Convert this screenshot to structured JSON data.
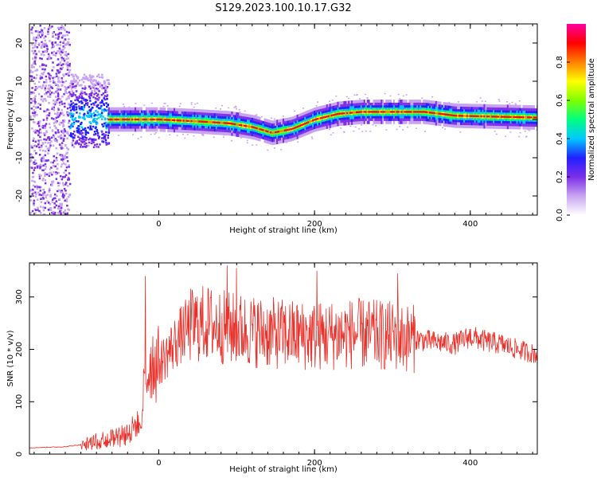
{
  "figure": {
    "title": "S129.2023.100.10.17.G32"
  },
  "chart_data": [
    {
      "type": "heatmap",
      "name": "spectrogram",
      "xlabel": "Height of straight line (km)",
      "ylabel": "Frequency (Hz)",
      "xlim": [
        -166,
        486
      ],
      "ylim": [
        -25,
        25
      ],
      "xticks": [
        0,
        200,
        400
      ],
      "yticks": [
        -20,
        -10,
        0,
        10,
        20
      ],
      "colorbar": {
        "label": "Normalized spectral amplitude",
        "range": [
          0,
          1
        ],
        "ticks": [
          0.0,
          0.2,
          0.4,
          0.6,
          0.8
        ],
        "colormap": [
          "#ffffff",
          "#c8a4f0",
          "#7c2ee8",
          "#2020ff",
          "#00c8ff",
          "#00ff80",
          "#80ff00",
          "#ffff00",
          "#ff8000",
          "#ff0000",
          "#ff00a0"
        ]
      },
      "ridge": {
        "x": [
          -65,
          -40,
          0,
          50,
          90,
          120,
          145,
          170,
          200,
          230,
          260,
          300,
          340,
          380,
          420,
          486
        ],
        "frequency": [
          0,
          0,
          0,
          -0.5,
          -1,
          -2,
          -3.5,
          -2.5,
          0,
          1.5,
          2,
          2,
          2,
          1,
          0.8,
          0.5
        ]
      },
      "noise_region": {
        "x_range": [
          -166,
          -115
        ],
        "frequency_range": [
          -25,
          25
        ]
      },
      "burst_region": {
        "x_range": [
          -115,
          -65
        ],
        "frequency_range": [
          -7,
          12
        ]
      }
    },
    {
      "type": "line",
      "name": "snr",
      "xlabel": "Height of straight line (km)",
      "ylabel": "SNR (10 * v/v)",
      "xlim": [
        -166,
        486
      ],
      "ylim": [
        0,
        365
      ],
      "xticks": [
        0,
        200,
        400
      ],
      "yticks": [
        0,
        100,
        200,
        300
      ],
      "color": "#e8312a",
      "envelope": {
        "x": [
          -166,
          -120,
          -100,
          -80,
          -60,
          -40,
          -25,
          -20,
          -10,
          0,
          10,
          20,
          30,
          40,
          60,
          90,
          120,
          150,
          200,
          250,
          300,
          330,
          350,
          380,
          400,
          420,
          440,
          460,
          486
        ],
        "y": [
          12,
          14,
          18,
          28,
          35,
          45,
          60,
          120,
          180,
          170,
          190,
          210,
          230,
          245,
          250,
          240,
          235,
          230,
          225,
          230,
          225,
          220,
          215,
          210,
          225,
          215,
          210,
          200,
          190
        ]
      },
      "peaks": [
        {
          "x": -17,
          "y": 340
        },
        {
          "x": 88,
          "y": 360
        },
        {
          "x": 100,
          "y": 355
        },
        {
          "x": 203,
          "y": 350
        },
        {
          "x": 307,
          "y": 345
        }
      ]
    }
  ]
}
